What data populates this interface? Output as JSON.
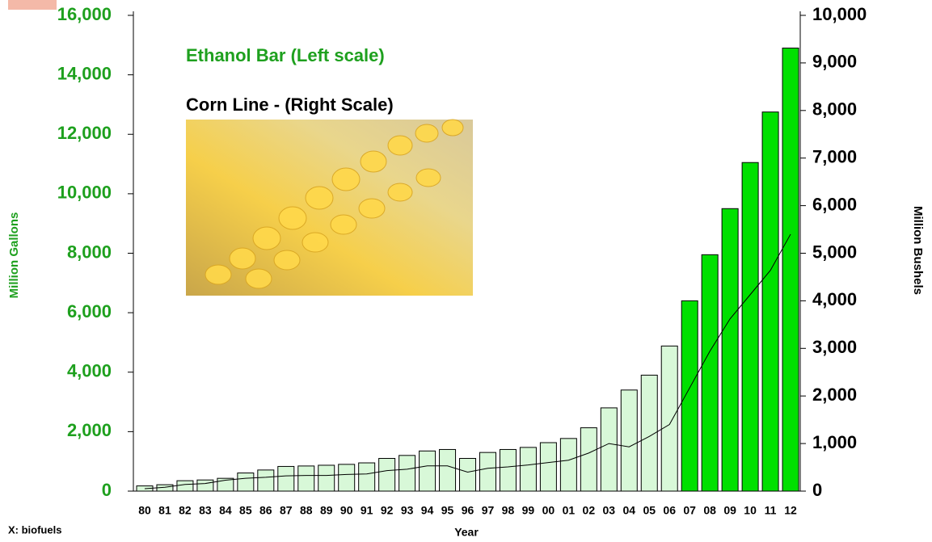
{
  "chart_data": {
    "type": "bar_line",
    "title": "Ethanol Bar (Left scale)",
    "subtitle": "Corn Line - (Right Scale)",
    "xlabel": "Year",
    "ylabel": "Million Gallons",
    "y2label": "Million Bushels",
    "footnote": "X: biofuels",
    "categories": [
      "80",
      "81",
      "82",
      "83",
      "84",
      "85",
      "86",
      "87",
      "88",
      "89",
      "90",
      "91",
      "92",
      "93",
      "94",
      "95",
      "96",
      "97",
      "98",
      "99",
      "00",
      "01",
      "02",
      "03",
      "04",
      "05",
      "06",
      "07",
      "08",
      "09",
      "10",
      "11",
      "12"
    ],
    "series": [
      {
        "name": "Ethanol",
        "type": "bar",
        "color": "#d8f8d8",
        "highlight_color": "#00e000",
        "highlight": [
          false,
          false,
          false,
          false,
          false,
          false,
          false,
          false,
          false,
          false,
          false,
          false,
          false,
          false,
          false,
          false,
          false,
          false,
          false,
          false,
          false,
          false,
          false,
          false,
          false,
          false,
          false,
          true,
          true,
          true,
          true,
          true,
          true
        ],
        "values": [
          175,
          215,
          350,
          375,
          430,
          610,
          710,
          830,
          845,
          870,
          900,
          950,
          1100,
          1200,
          1350,
          1400,
          1100,
          1300,
          1400,
          1470,
          1630,
          1770,
          2130,
          2800,
          3400,
          3900,
          4880,
          6400,
          7950,
          9500,
          11050,
          12750,
          14900
        ]
      },
      {
        "name": "Corn",
        "type": "line",
        "axis": "y2",
        "color": "#000000",
        "values": [
          50,
          80,
          140,
          160,
          230,
          270,
          290,
          320,
          330,
          330,
          350,
          360,
          430,
          460,
          530,
          530,
          400,
          480,
          510,
          550,
          600,
          650,
          800,
          1000,
          930,
          1150,
          1400,
          2170,
          2940,
          3620,
          4130,
          4640,
          5400
        ]
      }
    ],
    "ylim": [
      0,
      16000
    ],
    "yticks": [
      0,
      {
        "value": 2000,
        "label": "2,000"
      },
      {
        "value": 4000,
        "label": "4,000"
      },
      {
        "value": 6000,
        "label": "6,000"
      },
      {
        "value": 8000,
        "label": "8,000"
      },
      {
        "value": 10000,
        "label": "10,000"
      },
      {
        "value": 12000,
        "label": "12,000"
      },
      {
        "value": 14000,
        "label": "14,000"
      },
      {
        "value": 16000,
        "label": "16,000"
      }
    ],
    "y2lim": [
      0,
      10000
    ],
    "y2ticks": [
      0,
      {
        "value": 1000,
        "label": "1,000"
      },
      {
        "value": 2000,
        "label": "2,000"
      },
      {
        "value": 3000,
        "label": "3,000"
      },
      {
        "value": 4000,
        "label": "4,000"
      },
      {
        "value": 5000,
        "label": "5,000"
      },
      {
        "value": 6000,
        "label": "6,000"
      },
      {
        "value": 7000,
        "label": "7,000"
      },
      {
        "value": 8000,
        "label": "8,000"
      },
      {
        "value": 9000,
        "label": "9,000"
      },
      {
        "value": 10000,
        "label": "10,000"
      }
    ]
  }
}
